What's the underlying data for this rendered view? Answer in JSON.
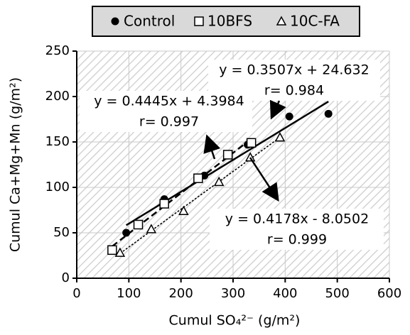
{
  "chart_data": {
    "type": "scatter",
    "legend": "top",
    "grid": true,
    "xlabel": "Cumul SO₄²⁻ (g/m²)",
    "ylabel": "Cumul Ca+Mg+Mn (g/m²)",
    "xlim": [
      0,
      600
    ],
    "xticks": [
      0,
      100,
      200,
      300,
      400,
      500,
      600
    ],
    "ylim": [
      0,
      250
    ],
    "yticks": [
      0,
      50,
      100,
      150,
      200,
      250
    ],
    "series": [
      {
        "name": "Control",
        "color": "#000000",
        "marker": "circle",
        "trendline": "solid",
        "x": [
          95,
          168,
          245,
          328,
          408,
          483
        ],
        "values": [
          50,
          87,
          113,
          147,
          178,
          181
        ]
      },
      {
        "name": "10BFS",
        "color": "#000000",
        "marker": "square",
        "trendline": "dashed",
        "x": [
          68,
          118,
          168,
          233,
          290,
          335
        ],
        "values": [
          31,
          59,
          82,
          110,
          136,
          149
        ]
      },
      {
        "name": "10C-FA",
        "color": "#000000",
        "marker": "triangle",
        "trendline": "dotted",
        "x": [
          83,
          143,
          205,
          273,
          333,
          390
        ],
        "values": [
          28,
          54,
          74,
          106,
          133,
          155
        ]
      }
    ],
    "annotations": [
      {
        "equation": "y = 0.3507x + 24.632",
        "r": "r= 0.984"
      },
      {
        "equation": "y = 0.4445x + 4.3984",
        "r": "r= 0.997"
      },
      {
        "equation": "y = 0.4178x - 8.0502",
        "r": "r= 0.999"
      }
    ]
  }
}
